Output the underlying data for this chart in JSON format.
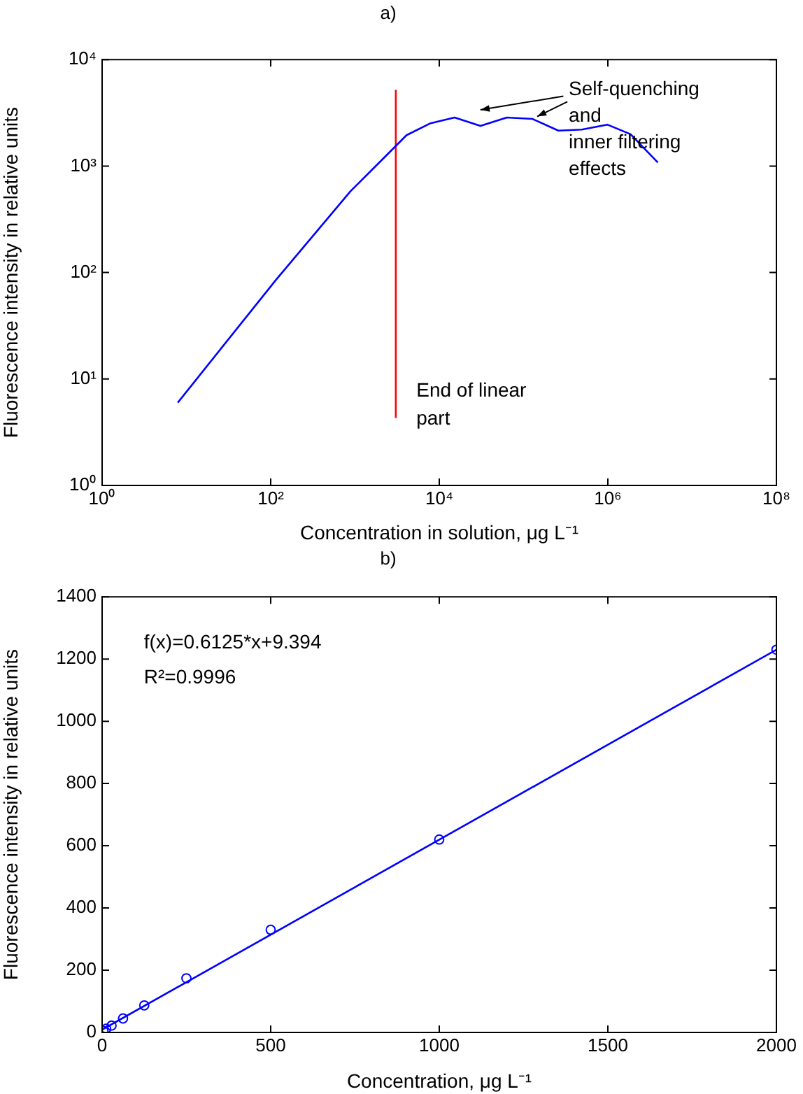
{
  "chart_data": [
    {
      "type": "line",
      "title": "a)",
      "xlabel": "Concentration in solution, μg L⁻¹",
      "ylabel": "Fluorescence intensity in relative units",
      "log": "xy",
      "xlim": [
        1,
        100000000
      ],
      "ylim": [
        1,
        10000
      ],
      "xticks": [
        {
          "value": 1,
          "label": "10⁰"
        },
        {
          "value": 100,
          "label": "10²"
        },
        {
          "value": 10000,
          "label": "10⁴"
        },
        {
          "value": 1000000,
          "label": "10⁶"
        },
        {
          "value": 100000000,
          "label": "10⁸"
        }
      ],
      "yticks": [
        {
          "value": 1,
          "label": "10⁰"
        },
        {
          "value": 10,
          "label": "10¹"
        },
        {
          "value": 100,
          "label": "10²"
        },
        {
          "value": 1000,
          "label": "10³"
        },
        {
          "value": 10000,
          "label": "10⁴"
        }
      ],
      "grid": false,
      "legend": false,
      "marker": "none",
      "line_style": "solid",
      "series": [
        {
          "color": "#0000ff",
          "x": [
            7.9,
            115,
            885,
            2160,
            4090,
            7740,
            15200,
            30800,
            63500,
            128000,
            259000,
            490000,
            986000,
            1860000,
            3920000
          ],
          "values": [
            6.0,
            85,
            580,
            1175,
            1950,
            2510,
            2860,
            2380,
            2860,
            2770,
            2150,
            2200,
            2450,
            1990,
            1080
          ]
        },
        {
          "color": "#ff0000",
          "x": [
            3050,
            3050
          ],
          "values": [
            4.3,
            5200
          ]
        }
      ],
      "annotations": [
        "End of linear\npart",
        {
          "text": "Self-quenching\nand\ninner filtering\neffects",
          "x": 145000,
          "y": 2750
        }
      ]
    },
    {
      "type": "scatter",
      "title": "b)",
      "xlabel": "Concentration, μg L⁻¹",
      "ylabel": "Fluorescence intensity in relative units",
      "xlim": [
        0,
        2000
      ],
      "ylim": [
        0,
        1400
      ],
      "xticks": [
        0,
        500,
        1000,
        1500,
        2000
      ],
      "yticks": [
        0,
        200,
        400,
        600,
        800,
        1000,
        1200,
        1400
      ],
      "grid": false,
      "legend": false,
      "series": [
        {
          "marker": "circle",
          "color": "#0000ff",
          "x": [
            4,
            12,
            28,
            62,
            125,
            250,
            500,
            1000,
            2000
          ],
          "values": [
            5,
            12,
            22,
            45,
            87,
            174,
            330,
            620,
            1230
          ]
        },
        {
          "type": "line",
          "marker": "none",
          "line_style": "solid",
          "color": "#0000ff",
          "x": [
            0,
            2000
          ],
          "values": [
            9,
            1230
          ]
        }
      ],
      "annotations": [
        "f(x)=0.6125*x+9.394",
        "R²=0.9996"
      ]
    }
  ]
}
